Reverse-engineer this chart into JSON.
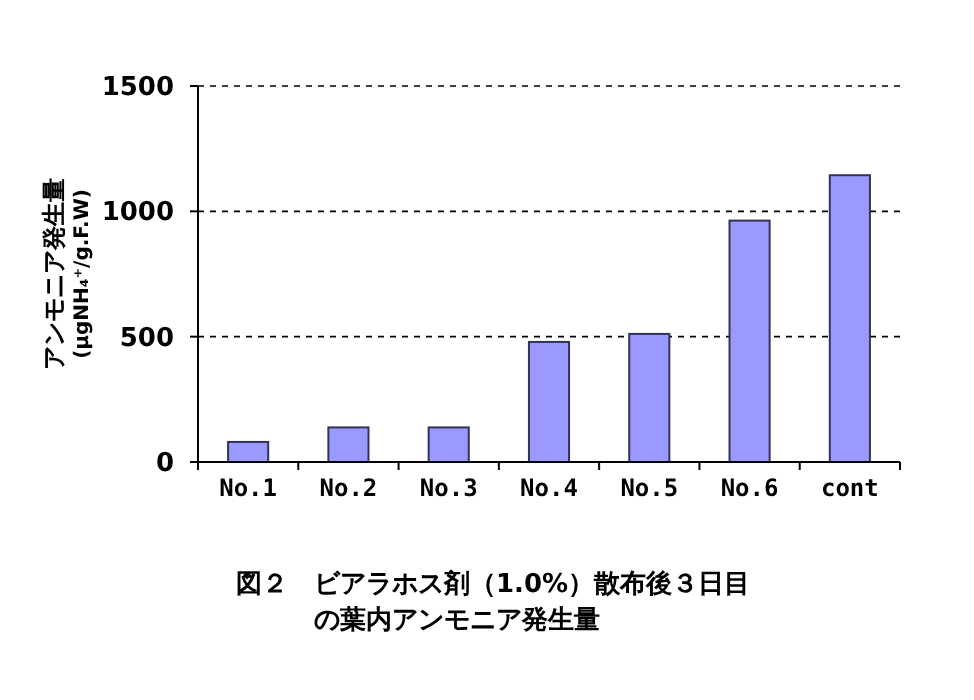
{
  "chart_data": {
    "type": "bar",
    "title": "図２",
    "subtitle": "ビアラホス剤（1.0%）散布後３日目の葉内アンモニア発生量",
    "ylabel": "アンモニア発生量\n(μgNH₄⁺/g.F.W)",
    "categories": [
      "No.1",
      "No.2",
      "No.3",
      "No.4",
      "No.5",
      "No.6",
      "cont"
    ],
    "values": [
      80,
      138,
      138,
      479,
      511,
      963,
      1144
    ],
    "color": "#9999ff",
    "ylim": [
      0,
      1500
    ],
    "yticks": [
      0,
      500,
      1000,
      1500
    ],
    "grid": "y"
  }
}
